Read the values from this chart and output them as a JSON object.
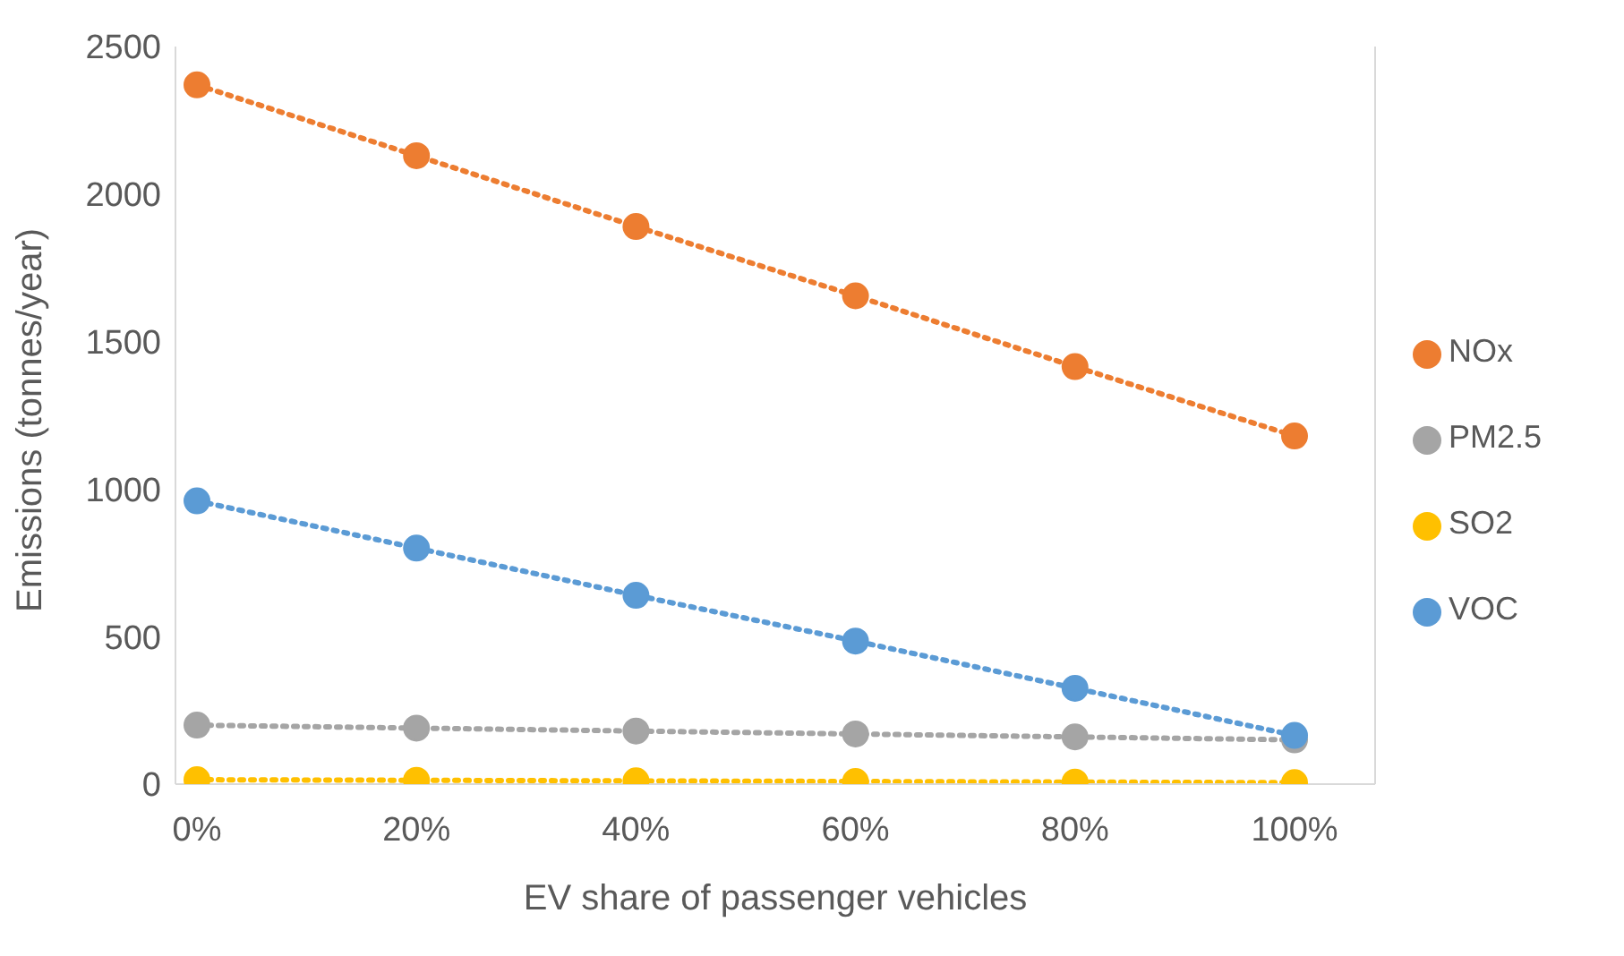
{
  "chart_data": {
    "type": "line",
    "xlabel": "EV share of passenger vehicles",
    "ylabel": "Emissions (tonnes/year)",
    "categories": [
      "0%",
      "20%",
      "40%",
      "60%",
      "80%",
      "100%"
    ],
    "series": [
      {
        "name": "NOx",
        "color": "#ed7d31",
        "values": [
          2370,
          2130,
          1890,
          1655,
          1415,
          1180
        ]
      },
      {
        "name": "PM2.5",
        "color": "#a5a5a5",
        "values": [
          200,
          190,
          180,
          170,
          160,
          150
        ]
      },
      {
        "name": "SO2",
        "color": "#ffc000",
        "values": [
          15,
          13,
          11,
          9,
          7,
          5
        ]
      },
      {
        "name": "VOC",
        "color": "#5b9bd5",
        "values": [
          960,
          800,
          640,
          485,
          325,
          165
        ]
      }
    ],
    "ylim": [
      0,
      2500
    ],
    "yticks": [
      0,
      500,
      1000,
      1500,
      2000,
      2500
    ],
    "grid": false,
    "legend": "right",
    "marker": "circle",
    "line_style": "dotted"
  }
}
